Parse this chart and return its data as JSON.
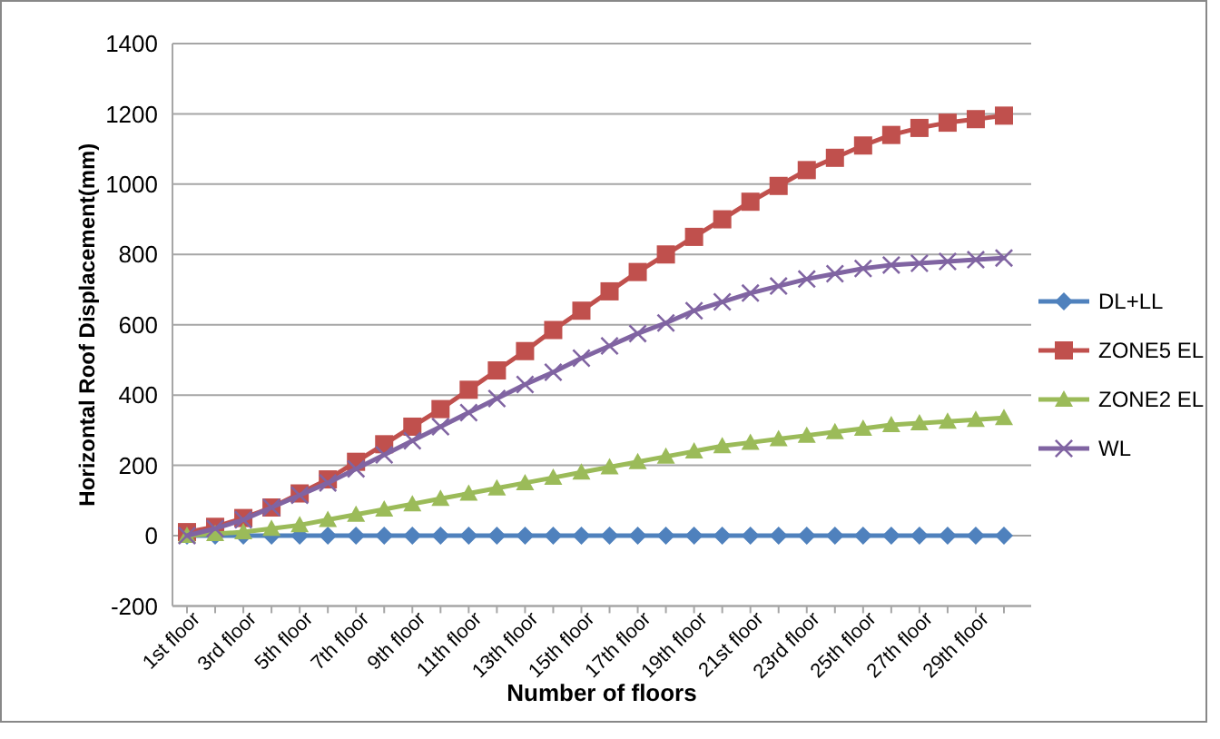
{
  "chart_data": {
    "type": "line",
    "xlabel": "Number of floors",
    "ylabel": "Horizontal Roof Displacement(mm)",
    "categories": [
      "1st floor",
      null,
      "3rd floor",
      null,
      "5th floor",
      null,
      "7th floor",
      null,
      "9th floor",
      null,
      "11th floor",
      null,
      "13th floor",
      null,
      "15th floor",
      null,
      "17th floor",
      null,
      "19th floor",
      null,
      "21st floor",
      null,
      "23rd floor",
      null,
      "25th floor",
      null,
      "27th floor",
      null,
      "29th floor",
      null
    ],
    "series": [
      {
        "name": "DL+LL",
        "color": "#4f81bd",
        "marker": "diamond",
        "values": [
          0,
          0,
          0,
          0,
          0,
          0,
          0,
          0,
          0,
          0,
          0,
          0,
          0,
          0,
          0,
          0,
          0,
          0,
          0,
          0,
          0,
          0,
          0,
          0,
          0,
          0,
          0,
          0,
          0,
          0
        ]
      },
      {
        "name": "ZONE5 EL",
        "color": "#c0504d",
        "marker": "square",
        "values": [
          10,
          25,
          50,
          80,
          120,
          160,
          210,
          260,
          310,
          360,
          415,
          470,
          525,
          585,
          640,
          695,
          750,
          800,
          850,
          900,
          950,
          995,
          1040,
          1075,
          1110,
          1140,
          1160,
          1175,
          1185,
          1195
        ]
      },
      {
        "name": "ZONE2 EL",
        "color": "#9bbb59",
        "marker": "triangle",
        "values": [
          0,
          5,
          10,
          20,
          30,
          45,
          60,
          75,
          90,
          105,
          120,
          135,
          150,
          165,
          180,
          195,
          210,
          225,
          240,
          255,
          265,
          275,
          285,
          295,
          305,
          315,
          320,
          325,
          330,
          335
        ]
      },
      {
        "name": "WL",
        "color": "#8064a2",
        "marker": "cross",
        "values": [
          0,
          20,
          45,
          80,
          115,
          150,
          190,
          230,
          270,
          310,
          350,
          390,
          430,
          465,
          505,
          540,
          575,
          605,
          640,
          665,
          690,
          710,
          730,
          745,
          760,
          770,
          775,
          780,
          785,
          790
        ]
      }
    ],
    "ylim": [
      -200,
      1400
    ],
    "yticks": [
      -200,
      0,
      200,
      400,
      600,
      800,
      1000,
      1200,
      1400
    ],
    "grid": "y",
    "legend": "right",
    "line_style": "solid"
  }
}
